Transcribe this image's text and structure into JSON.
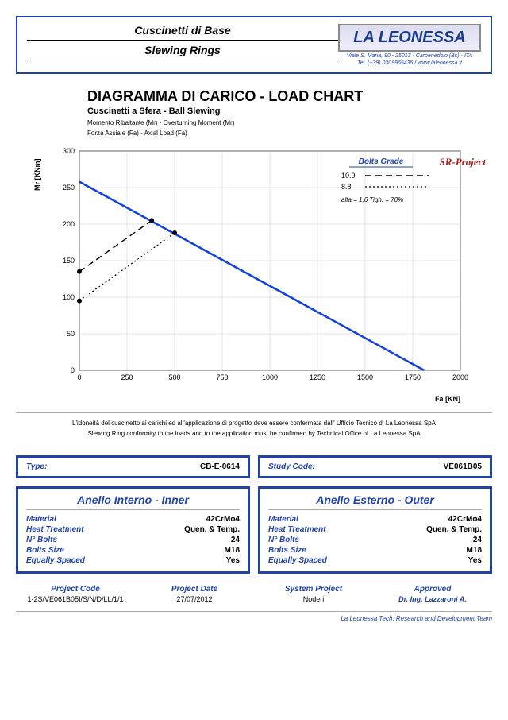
{
  "header": {
    "title1": "Cuscinetti di Base",
    "title2": "Slewing Rings",
    "logo_text": "LA LEONESSA",
    "addr1": "Viale S. Maria, 90 - 25013 - Carpenedolo (Bs) - ITA",
    "addr2": "Tel. (+39) 0309965435 / www.laleonessa.it"
  },
  "chart": {
    "title": "DIAGRAMMA DI CARICO - LOAD CHART",
    "subtitle": "Cuscinetti a Sfera - Ball Slewing",
    "note1": "Momento Ribaltante (Mr) - Overturning Moment (Mr)",
    "note2": "Forza Assiale (Fa) - Axial Load (Fa)",
    "sr_project": "SR-Project",
    "y_label": "Mr [KNm]",
    "x_label": "Fa [KN]",
    "xlim": [
      0,
      2000
    ],
    "ylim": [
      0,
      300
    ],
    "x_ticks": [
      0,
      250,
      500,
      750,
      1000,
      1250,
      1500,
      1750,
      2000
    ],
    "y_ticks": [
      0,
      50,
      100,
      150,
      200,
      250,
      300
    ],
    "main_line": {
      "color": "#1040dd",
      "width": 2.5,
      "points": [
        [
          0,
          258
        ],
        [
          1810,
          0
        ]
      ]
    },
    "bolts_109": {
      "dash": "8,5",
      "color": "#000",
      "width": 1.5,
      "points": [
        [
          0,
          135
        ],
        [
          380,
          205
        ]
      ]
    },
    "bolts_88": {
      "dash": "2,3",
      "color": "#000",
      "width": 1.2,
      "points": [
        [
          0,
          95
        ],
        [
          500,
          188
        ]
      ]
    },
    "markers": [
      [
        0,
        135
      ],
      [
        380,
        205
      ],
      [
        0,
        95
      ],
      [
        500,
        188
      ]
    ],
    "legend": {
      "title": "Bolts Grade",
      "l1": "10.9",
      "l2": "8.8",
      "alfa": "alfa = 1,6    Tigh. = 70%"
    },
    "plot_bg": "#ffffff",
    "grid_color": "#cccccc"
  },
  "disclaimer": {
    "it": "L'idoneità del cuscinetto ai carichi ed all'applicazione di progetto deve essere confermata dall' Ufficio Tecnico di La Leonessa SpA",
    "en": "Slewing Ring conformity to the loads and to the application must be confirmed by Technical Office of La Leonessa SpA"
  },
  "type_box": {
    "label": "Type:",
    "val": "CB-E-0614"
  },
  "study_box": {
    "label": "Study Code:",
    "val": "VE061B05"
  },
  "inner": {
    "title": "Anello Interno - Inner",
    "rows": [
      {
        "l": "Material",
        "v": "42CrMo4"
      },
      {
        "l": "Heat Treatment",
        "v": "Quen. & Temp."
      },
      {
        "l": "N° Bolts",
        "v": "24"
      },
      {
        "l": "Bolts Size",
        "v": "M18"
      },
      {
        "l": "Equally Spaced",
        "v": "Yes"
      }
    ]
  },
  "outer": {
    "title": "Anello Esterno - Outer",
    "rows": [
      {
        "l": "Material",
        "v": "42CrMo4"
      },
      {
        "l": "Heat Treatment",
        "v": "Quen. & Temp."
      },
      {
        "l": "N° Bolts",
        "v": "24"
      },
      {
        "l": "Bolts Size",
        "v": "M18"
      },
      {
        "l": "Equally Spaced",
        "v": "Yes"
      }
    ]
  },
  "footer": {
    "cols": [
      {
        "l": "Project Code",
        "v": "1-2S/VE061B05I/S/N/D/LL/1/1"
      },
      {
        "l": "Project Date",
        "v": "27/07/2012"
      },
      {
        "l": "System Project",
        "v": "Noderi"
      },
      {
        "l": "Approved",
        "v": "Dr. Ing. Lazzaroni A."
      }
    ],
    "team": "La Leonessa Tech: Research and Development Team"
  }
}
